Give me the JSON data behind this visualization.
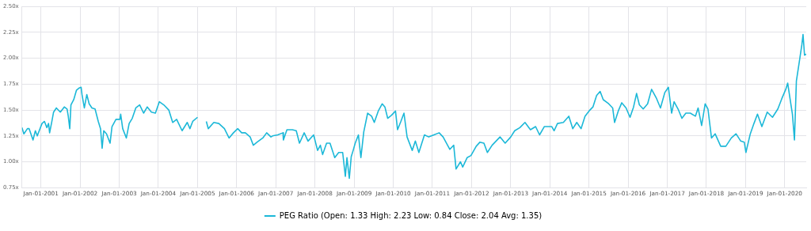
{
  "chart_data": {
    "type": "line",
    "legend": "bottom",
    "grid": true,
    "marker": "none",
    "line_style": "solid",
    "xlim": [
      "2000-07-08",
      "2020-07-20"
    ],
    "xticks": [
      {
        "value": "2001-01-01",
        "label": "Jan-01-2001"
      },
      {
        "value": "2002-01-01",
        "label": "Jan-01-2002"
      },
      {
        "value": "2003-01-01",
        "label": "Jan-01-2003"
      },
      {
        "value": "2004-01-01",
        "label": "Jan-01-2004"
      },
      {
        "value": "2005-01-01",
        "label": "Jan-01-2005"
      },
      {
        "value": "2006-01-01",
        "label": "Jan-01-2006"
      },
      {
        "value": "2007-01-01",
        "label": "Jan-01-2007"
      },
      {
        "value": "2008-01-01",
        "label": "Jan-01-2008"
      },
      {
        "value": "2009-01-01",
        "label": "Jan-01-2009"
      },
      {
        "value": "2010-01-01",
        "label": "Jan-01-2010"
      },
      {
        "value": "2011-01-01",
        "label": "Jan-01-2011"
      },
      {
        "value": "2012-01-01",
        "label": "Jan-01-2012"
      },
      {
        "value": "2013-01-01",
        "label": "Jan-01-2013"
      },
      {
        "value": "2014-01-01",
        "label": "Jan-01-2014"
      },
      {
        "value": "2015-01-01",
        "label": "Jan-01-2015"
      },
      {
        "value": "2016-01-01",
        "label": "Jan-01-2016"
      },
      {
        "value": "2017-01-01",
        "label": "Jan-01-2017"
      },
      {
        "value": "2018-01-01",
        "label": "Jan-01-2018"
      },
      {
        "value": "2019-01-01",
        "label": "Jan-01-2019"
      },
      {
        "value": "2020-01-01",
        "label": "Jan-01-2020"
      }
    ],
    "ylim": [
      0.75,
      2.5
    ],
    "yticks": [
      {
        "value": 0.75,
        "label": "0.75x"
      },
      {
        "value": 1.0,
        "label": "1.00x"
      },
      {
        "value": 1.25,
        "label": "1.25x"
      },
      {
        "value": 1.5,
        "label": "1.50x"
      },
      {
        "value": 1.75,
        "label": "1.75x"
      },
      {
        "value": 2.0,
        "label": "2.00x"
      },
      {
        "value": 2.25,
        "label": "2.25x"
      },
      {
        "value": 2.5,
        "label": "2.50x"
      }
    ],
    "x": [
      "2000-07-08",
      "2000-07-26",
      "2000-08-28",
      "2000-09-13",
      "2000-10-19",
      "2000-11-10",
      "2000-11-28",
      "2000-12-16",
      "2001-01-11",
      "2001-02-03",
      "2001-02-25",
      "2001-03-13",
      "2001-03-23",
      "2001-04-11",
      "2001-04-29",
      "2001-05-25",
      "2001-07-01",
      "2001-08-07",
      "2001-09-02",
      "2001-09-13",
      "2001-09-27",
      "2001-10-08",
      "2001-11-03",
      "2001-11-28",
      "2001-12-20",
      "2002-01-11",
      "2002-01-19",
      "2002-02-10",
      "2002-03-05",
      "2002-03-27",
      "2002-04-22",
      "2002-05-21",
      "2002-06-20",
      "2002-07-11",
      "2002-07-26",
      "2002-08-10",
      "2002-09-05",
      "2002-10-08",
      "2002-10-26",
      "2002-12-02",
      "2003-01-08",
      "2003-01-15",
      "2003-02-03",
      "2003-03-09",
      "2003-04-04",
      "2003-05-03",
      "2003-06-05",
      "2003-07-11",
      "2003-08-17",
      "2003-09-20",
      "2003-10-29",
      "2003-12-05",
      "2004-01-11",
      "2004-02-21",
      "2004-04-08",
      "2004-05-14",
      "2004-06-20",
      "2004-08-10",
      "2004-09-27",
      "2004-10-22",
      "2004-11-17",
      "2005-01-01",
      "2005-01-20",
      "2005-03-24",
      "2005-04-11",
      "2005-06-02",
      "2005-07-19",
      "2005-09-09",
      "2005-10-22",
      "2005-12-02",
      "2006-01-11",
      "2006-02-17",
      "2006-03-23",
      "2006-05-07",
      "2006-06-05",
      "2006-07-11",
      "2006-09-02",
      "2006-10-08",
      "2006-11-17",
      "2006-12-02",
      "2007-01-19",
      "2007-03-09",
      "2007-03-13",
      "2007-04-15",
      "2007-06-05",
      "2007-07-11",
      "2007-08-10",
      "2007-09-23",
      "2007-10-29",
      "2007-12-20",
      "2008-01-26",
      "2008-02-21",
      "2008-03-13",
      "2008-04-19",
      "2008-05-21",
      "2008-07-04",
      "2008-08-10",
      "2008-09-16",
      "2008-10-11",
      "2008-10-26",
      "2008-11-17",
      "2008-12-05",
      "2008-12-23",
      "2009-01-11",
      "2009-02-10",
      "2009-03-05",
      "2009-04-01",
      "2009-05-07",
      "2009-06-13",
      "2009-07-08",
      "2009-08-14",
      "2009-09-20",
      "2009-10-15",
      "2009-11-10",
      "2009-12-16",
      "2010-01-22",
      "2010-02-10",
      "2010-03-13",
      "2010-04-11",
      "2010-05-10",
      "2010-06-27",
      "2010-07-26",
      "2010-08-28",
      "2010-10-19",
      "2010-11-28",
      "2011-01-15",
      "2011-03-05",
      "2011-04-11",
      "2011-06-13",
      "2011-07-19",
      "2011-08-10",
      "2011-09-20",
      "2011-10-11",
      "2011-11-21",
      "2011-12-27",
      "2012-02-14",
      "2012-03-20",
      "2012-04-26",
      "2012-05-28",
      "2012-07-11",
      "2012-09-23",
      "2012-11-10",
      "2013-01-01",
      "2013-02-07",
      "2013-03-27",
      "2013-05-14",
      "2013-07-04",
      "2013-08-21",
      "2013-09-27",
      "2013-11-10",
      "2014-01-19",
      "2014-02-10",
      "2014-03-13",
      "2014-05-07",
      "2014-06-27",
      "2014-08-03",
      "2014-09-09",
      "2014-10-19",
      "2014-11-25",
      "2015-01-01",
      "2015-02-07",
      "2015-03-13",
      "2015-04-15",
      "2015-05-14",
      "2015-07-04",
      "2015-08-10",
      "2015-08-28",
      "2015-10-01",
      "2015-11-03",
      "2015-12-13",
      "2016-01-19",
      "2016-02-21",
      "2016-03-20",
      "2016-04-15",
      "2016-05-21",
      "2016-07-01",
      "2016-08-07",
      "2016-09-23",
      "2016-10-29",
      "2016-12-09",
      "2017-01-11",
      "2017-02-10",
      "2017-03-05",
      "2017-04-11",
      "2017-05-17",
      "2017-06-23",
      "2017-08-03",
      "2017-09-20",
      "2017-10-15",
      "2017-11-17",
      "2017-12-20",
      "2018-01-15",
      "2018-02-17",
      "2018-03-23",
      "2018-05-14",
      "2018-07-01",
      "2018-08-21",
      "2018-10-04",
      "2018-11-17",
      "2018-12-20",
      "2019-01-04",
      "2019-02-14",
      "2019-03-20",
      "2019-04-22",
      "2019-06-02",
      "2019-07-22",
      "2019-09-09",
      "2019-10-29",
      "2019-12-05",
      "2020-01-11",
      "2020-01-29",
      "2020-02-21",
      "2020-03-13",
      "2020-04-01",
      "2020-04-19",
      "2020-05-14",
      "2020-06-09",
      "2020-06-20",
      "2020-07-04",
      "2020-07-19"
    ],
    "series": [
      {
        "name": "PEG Ratio (Open: 1.33 High: 2.23 Low: 0.84 Close: 2.04 Avg: 1.35)",
        "color": "#1cb8d8",
        "values": [
          1.33,
          1.27,
          1.32,
          1.32,
          1.21,
          1.3,
          1.25,
          1.3,
          1.37,
          1.39,
          1.33,
          1.37,
          1.28,
          1.38,
          1.48,
          1.52,
          1.48,
          1.53,
          1.51,
          1.44,
          1.32,
          1.55,
          1.6,
          1.69,
          1.71,
          1.72,
          1.65,
          1.52,
          1.65,
          1.56,
          1.52,
          1.51,
          1.39,
          1.32,
          1.13,
          1.3,
          1.27,
          1.18,
          1.34,
          1.41,
          1.41,
          1.46,
          1.32,
          1.23,
          1.37,
          1.42,
          1.52,
          1.55,
          1.47,
          1.53,
          1.48,
          1.47,
          1.58,
          1.55,
          1.5,
          1.38,
          1.41,
          1.3,
          1.38,
          1.32,
          1.39,
          1.43,
          null,
          1.39,
          1.32,
          1.38,
          1.37,
          1.32,
          1.23,
          1.28,
          1.32,
          1.28,
          1.28,
          1.24,
          1.16,
          1.19,
          1.23,
          1.28,
          1.24,
          1.25,
          1.26,
          1.28,
          1.21,
          1.31,
          1.31,
          1.3,
          1.18,
          1.28,
          1.2,
          1.26,
          1.11,
          1.16,
          1.07,
          1.18,
          1.18,
          1.04,
          1.09,
          1.09,
          0.86,
          1.04,
          0.84,
          1.05,
          1.11,
          1.18,
          1.26,
          1.04,
          1.29,
          1.47,
          1.44,
          1.38,
          1.49,
          1.56,
          1.53,
          1.42,
          1.45,
          1.49,
          1.31,
          1.39,
          1.47,
          1.24,
          1.11,
          1.2,
          1.09,
          1.26,
          1.24,
          1.26,
          1.28,
          1.24,
          1.12,
          1.16,
          0.93,
          1.0,
          0.95,
          1.04,
          1.06,
          1.15,
          1.19,
          1.18,
          1.09,
          1.16,
          1.24,
          1.18,
          1.24,
          1.3,
          1.33,
          1.38,
          1.31,
          1.34,
          1.26,
          1.34,
          1.34,
          1.3,
          1.37,
          1.38,
          1.44,
          1.32,
          1.38,
          1.32,
          1.44,
          1.49,
          1.53,
          1.64,
          1.68,
          1.6,
          1.56,
          1.52,
          1.38,
          1.49,
          1.57,
          1.52,
          1.43,
          1.53,
          1.66,
          1.55,
          1.51,
          1.56,
          1.7,
          1.61,
          1.52,
          1.67,
          1.72,
          1.47,
          1.58,
          1.51,
          1.42,
          1.47,
          1.47,
          1.44,
          1.52,
          1.35,
          1.56,
          1.51,
          1.23,
          1.27,
          1.15,
          1.15,
          1.23,
          1.27,
          1.2,
          1.19,
          1.09,
          1.27,
          1.37,
          1.46,
          1.34,
          1.48,
          1.43,
          1.51,
          1.61,
          1.7,
          1.76,
          1.6,
          1.46,
          1.21,
          1.78,
          1.95,
          2.13,
          2.23,
          2.03,
          2.04
        ]
      }
    ]
  }
}
